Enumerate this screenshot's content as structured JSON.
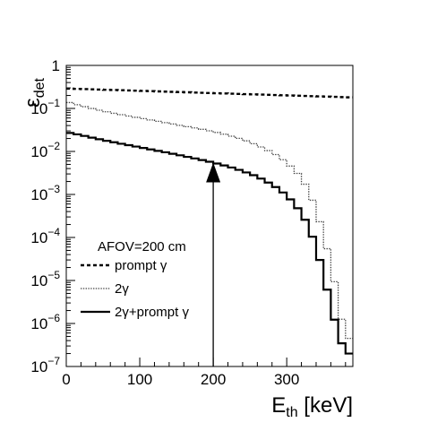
{
  "chart_data": {
    "type": "line",
    "xlabel": {
      "main": "E",
      "sub": "th",
      "unit": " [keV]"
    },
    "ylabel": {
      "main": "ε",
      "sub": "det"
    },
    "xlim": [
      0,
      390
    ],
    "ylim": [
      1e-07,
      1
    ],
    "y_scale": "log",
    "grid": false,
    "x_ticks": [
      {
        "value": 0,
        "label": "0"
      },
      {
        "value": 100,
        "label": "100"
      },
      {
        "value": 200,
        "label": "200"
      },
      {
        "value": 300,
        "label": "300"
      }
    ],
    "y_ticks": [
      {
        "value": 1,
        "base": "1",
        "exp": ""
      },
      {
        "value": 0.1,
        "base": "10",
        "exp": "−1"
      },
      {
        "value": 0.01,
        "base": "10",
        "exp": "−2"
      },
      {
        "value": 0.001,
        "base": "10",
        "exp": "−3"
      },
      {
        "value": 0.0001,
        "base": "10",
        "exp": "−4"
      },
      {
        "value": 1e-05,
        "base": "10",
        "exp": "−5"
      },
      {
        "value": 1e-06,
        "base": "10",
        "exp": "−6"
      },
      {
        "value": 1e-07,
        "base": "10",
        "exp": "−7"
      }
    ],
    "legend": {
      "header": "AFOV=200 cm",
      "placement": "bottom-left"
    },
    "annotation": {
      "type": "arrow",
      "x": 200,
      "y_start": 1e-07,
      "y_end": 0.0055
    },
    "series": [
      {
        "name": "prompt γ",
        "style": "dashed",
        "step": 10,
        "x": [
          0,
          390
        ],
        "y": [
          0.29,
          0.18
        ]
      },
      {
        "name": "2γ",
        "style": "dotted",
        "step": 10,
        "x": [
          0,
          20,
          40,
          60,
          80,
          100,
          120,
          140,
          160,
          180,
          200,
          220,
          240,
          260,
          270,
          280,
          290,
          300,
          310,
          320,
          330,
          340,
          350,
          360,
          370,
          380,
          390
        ],
        "y": [
          0.145,
          0.115,
          0.095,
          0.08,
          0.069,
          0.06,
          0.052,
          0.045,
          0.039,
          0.034,
          0.029,
          0.024,
          0.019,
          0.014,
          0.0115,
          0.0095,
          0.0075,
          0.0055,
          0.0038,
          0.0025,
          0.0012,
          0.00045,
          0.00012,
          2.5e-05,
          3.5e-06,
          4.5e-07,
          4.5e-07
        ]
      },
      {
        "name": "2γ+prompt γ",
        "style": "solid",
        "step": 10,
        "x": [
          0,
          20,
          40,
          60,
          80,
          100,
          120,
          140,
          160,
          180,
          200,
          220,
          240,
          260,
          270,
          280,
          290,
          300,
          310,
          320,
          330,
          340,
          350,
          360,
          370,
          380,
          390
        ],
        "y": [
          0.028,
          0.024,
          0.02,
          0.017,
          0.0145,
          0.0125,
          0.0107,
          0.0092,
          0.0078,
          0.0066,
          0.0055,
          0.0045,
          0.0035,
          0.0026,
          0.0021,
          0.0017,
          0.0013,
          0.00095,
          0.00062,
          0.00037,
          0.00018,
          6e-05,
          1.5e-05,
          2.5e-06,
          6e-07,
          2e-07,
          2e-07
        ]
      }
    ]
  }
}
